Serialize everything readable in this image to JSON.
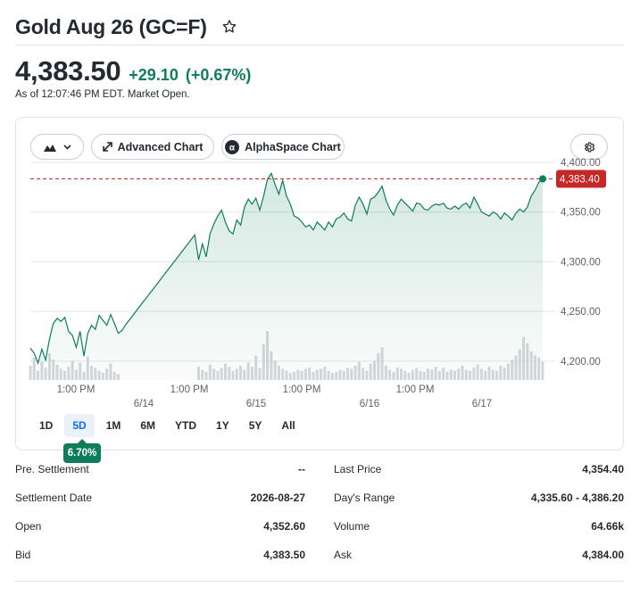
{
  "header": {
    "title": "Gold Aug 26 (GC=F)",
    "star_icon": "star-outline-icon"
  },
  "quote": {
    "price": "4,383.50",
    "change": "+29.10",
    "change_pct": "(+0.67%)",
    "as_of": "As of 12:07:46 PM EDT. Market Open.",
    "up_color": "#0d7d5b"
  },
  "toolbar": {
    "chart_type_icon": "mountain-chart-icon",
    "advanced_label": "Advanced Chart",
    "alphaspace_label": "AlphaSpace Chart",
    "settings_icon": "gear-icon"
  },
  "ranges": {
    "items": [
      "1D",
      "5D",
      "1M",
      "6M",
      "YTD",
      "1Y",
      "5Y",
      "All"
    ],
    "active": "5D",
    "performance": "6.70%"
  },
  "chart_data": {
    "type": "area",
    "title": "",
    "y_ticks": [
      "4,400.00",
      "4,350.00",
      "4,300.00",
      "4,250.00",
      "4,200.00"
    ],
    "ylim": [
      4190,
      4400
    ],
    "x_time_labels": [
      "1:00 PM",
      "1:00 PM",
      "1:00 PM",
      "1:00 PM"
    ],
    "x_date_labels": [
      "6/14",
      "6/15",
      "6/16",
      "6/17"
    ],
    "current_price_label": "4,383.40",
    "current_price": 4383.4,
    "line_color": "#0d7d5b",
    "price_label_color": "#c62828",
    "x": [
      0,
      1,
      2,
      3,
      4,
      5,
      6,
      7,
      8,
      9,
      10,
      11,
      12,
      13,
      14,
      15,
      16,
      17,
      18,
      19,
      20,
      21,
      22,
      23,
      24,
      25,
      26,
      27,
      28,
      29,
      30,
      31,
      32,
      33,
      34,
      35,
      36,
      37,
      38,
      39,
      40,
      41,
      42,
      43,
      44,
      45,
      46,
      47,
      48,
      49,
      50,
      51,
      52,
      53,
      54,
      55,
      56,
      57,
      58,
      59,
      60,
      61,
      62,
      63,
      64,
      65,
      66,
      67,
      68,
      69,
      70,
      71,
      72,
      73,
      74,
      75,
      76,
      77,
      78,
      79,
      80,
      81,
      82,
      83,
      84,
      85,
      86,
      87,
      88,
      89,
      90,
      91,
      92,
      93,
      94,
      95,
      96,
      97,
      98,
      99,
      100,
      101,
      102,
      103,
      104,
      105,
      106,
      107,
      108,
      109,
      110,
      111,
      112,
      113,
      114,
      115,
      116,
      117,
      118,
      119,
      120,
      121,
      122,
      123,
      124,
      125,
      126,
      127,
      128,
      129,
      130,
      131,
      132,
      133,
      134
    ],
    "values": [
      4213,
      4208,
      4198,
      4212,
      4201,
      4222,
      4238,
      4243,
      4240,
      4244,
      4230,
      4226,
      4214,
      4230,
      4205,
      4228,
      4236,
      4232,
      4246,
      4241,
      4236,
      4247,
      4238,
      4228,
      4231,
      4237,
      4242,
      4247,
      4252,
      4257,
      4262,
      4267,
      4272,
      4277,
      4282,
      4287,
      4292,
      4297,
      4302,
      4307,
      4312,
      4317,
      4322,
      4327,
      4302,
      4318,
      4305,
      4328,
      4338,
      4346,
      4352,
      4340,
      4331,
      4328,
      4342,
      4337,
      4355,
      4363,
      4358,
      4364,
      4352,
      4366,
      4383,
      4389,
      4378,
      4368,
      4382,
      4366,
      4358,
      4346,
      4344,
      4340,
      4335,
      4337,
      4332,
      4340,
      4336,
      4332,
      4340,
      4335,
      4343,
      4345,
      4349,
      4343,
      4341,
      4357,
      4365,
      4358,
      4348,
      4363,
      4365,
      4370,
      4376,
      4362,
      4353,
      4347,
      4357,
      4363,
      4359,
      4355,
      4351,
      4359,
      4358,
      4353,
      4352,
      4356,
      4358,
      4357,
      4359,
      4354,
      4353,
      4356,
      4353,
      4357,
      4359,
      4354,
      4365,
      4358,
      4350,
      4348,
      4346,
      4350,
      4348,
      4343,
      4349,
      4346,
      4342,
      4349,
      4353,
      4350,
      4355,
      4366,
      4372,
      4380,
      4383.4
    ],
    "volume": [
      14,
      22,
      9,
      18,
      12,
      26,
      20,
      15,
      11,
      9,
      13,
      19,
      10,
      17,
      8,
      23,
      14,
      12,
      9,
      7,
      11,
      16,
      8,
      6,
      0,
      0,
      0,
      0,
      0,
      0,
      0,
      0,
      0,
      0,
      0,
      0,
      0,
      0,
      0,
      0,
      0,
      0,
      0,
      0,
      13,
      10,
      8,
      15,
      11,
      9,
      12,
      16,
      13,
      9,
      11,
      14,
      10,
      17,
      13,
      24,
      12,
      35,
      48,
      28,
      19,
      14,
      11,
      9,
      7,
      8,
      10,
      9,
      11,
      12,
      8,
      10,
      11,
      13,
      9,
      7,
      8,
      10,
      9,
      12,
      11,
      14,
      18,
      12,
      9,
      16,
      19,
      26,
      32,
      14,
      10,
      8,
      12,
      11,
      9,
      7,
      10,
      12,
      9,
      8,
      11,
      10,
      13,
      9,
      12,
      8,
      10,
      9,
      11,
      14,
      10,
      9,
      12,
      15,
      11,
      9,
      13,
      10,
      9,
      14,
      12,
      16,
      20,
      24,
      30,
      42,
      36,
      28,
      24,
      22,
      18
    ]
  },
  "stats": {
    "left": [
      {
        "label": "Pre. Settlement",
        "value": "--"
      },
      {
        "label": "Settlement Date",
        "value": "2026-08-27"
      },
      {
        "label": "Open",
        "value": "4,352.60"
      },
      {
        "label": "Bid",
        "value": "4,383.50"
      }
    ],
    "right": [
      {
        "label": "Last Price",
        "value": "4,354.40"
      },
      {
        "label": "Day's Range",
        "value": "4,335.60 - 4,386.20"
      },
      {
        "label": "Volume",
        "value": "64.66k"
      },
      {
        "label": "Ask",
        "value": "4,384.00"
      }
    ]
  }
}
